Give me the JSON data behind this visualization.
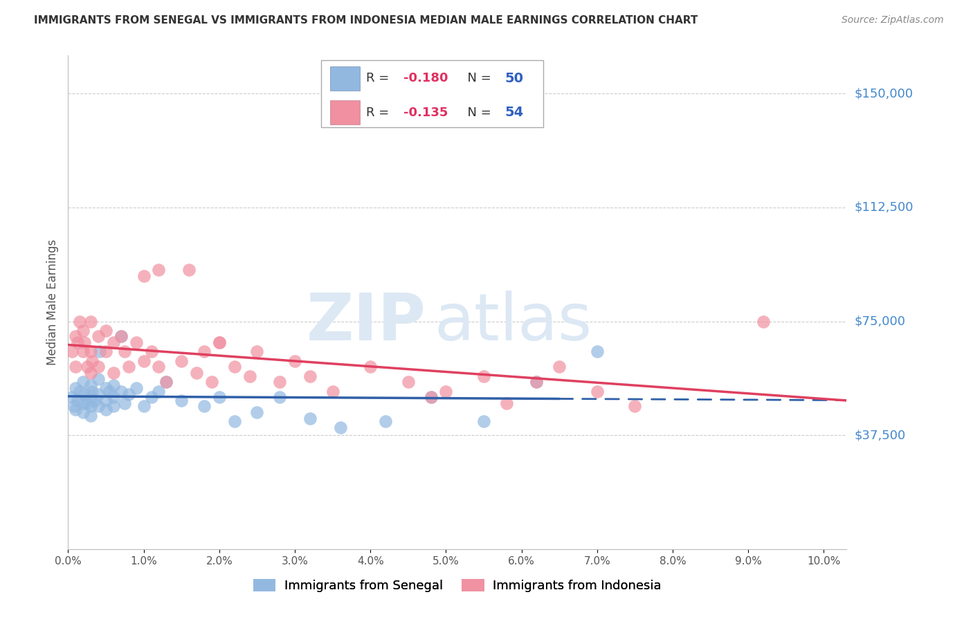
{
  "title": "IMMIGRANTS FROM SENEGAL VS IMMIGRANTS FROM INDONESIA MEDIAN MALE EARNINGS CORRELATION CHART",
  "source": "Source: ZipAtlas.com",
  "ylabel": "Median Male Earnings",
  "yticks": [
    0,
    37500,
    75000,
    112500,
    150000
  ],
  "ytick_labels": [
    "",
    "$37,500",
    "$75,000",
    "$112,500",
    "$150,000"
  ],
  "xlim": [
    0.0,
    0.103
  ],
  "ylim": [
    0,
    162500
  ],
  "senegal_color": "#92b8e0",
  "indonesia_color": "#f090a0",
  "trendline_senegal_color": "#3060a8",
  "trendline_indonesia_color": "#e04060",
  "watermark_zip": "ZIP",
  "watermark_atlas": "atlas",
  "watermark_color": "#dce8f4",
  "background_color": "#ffffff",
  "grid_color": "#cccccc",
  "ytick_color": "#4488cc",
  "title_color": "#333333",
  "legend_r1": "-0.180",
  "legend_n1": "50",
  "legend_r2": "-0.135",
  "legend_n2": "54",
  "legend_rn_color": "#e03060",
  "legend_n_color": "#3060c0",
  "senegal_x": [
    0.0005,
    0.0008,
    0.001,
    0.001,
    0.0012,
    0.0015,
    0.002,
    0.002,
    0.002,
    0.0022,
    0.0025,
    0.003,
    0.003,
    0.003,
    0.003,
    0.0032,
    0.0035,
    0.004,
    0.004,
    0.004,
    0.0042,
    0.005,
    0.005,
    0.005,
    0.0055,
    0.006,
    0.006,
    0.006,
    0.007,
    0.007,
    0.0075,
    0.008,
    0.009,
    0.01,
    0.011,
    0.012,
    0.013,
    0.015,
    0.018,
    0.02,
    0.022,
    0.025,
    0.028,
    0.032,
    0.036,
    0.042,
    0.048,
    0.055,
    0.062,
    0.07
  ],
  "senegal_y": [
    50000,
    47000,
    53000,
    46000,
    49000,
    52000,
    55000,
    48000,
    45000,
    51000,
    48000,
    54000,
    50000,
    47000,
    44000,
    52000,
    49000,
    56000,
    51000,
    47000,
    65000,
    53000,
    49000,
    46000,
    52000,
    54000,
    50000,
    47000,
    70000,
    52000,
    48000,
    51000,
    53000,
    47000,
    50000,
    52000,
    55000,
    49000,
    47000,
    50000,
    42000,
    45000,
    50000,
    43000,
    40000,
    42000,
    50000,
    42000,
    55000,
    65000
  ],
  "indonesia_x": [
    0.0005,
    0.001,
    0.001,
    0.0012,
    0.0015,
    0.002,
    0.002,
    0.0022,
    0.0025,
    0.003,
    0.003,
    0.003,
    0.0032,
    0.004,
    0.004,
    0.005,
    0.005,
    0.006,
    0.006,
    0.007,
    0.0075,
    0.008,
    0.009,
    0.01,
    0.011,
    0.012,
    0.013,
    0.015,
    0.017,
    0.018,
    0.019,
    0.02,
    0.022,
    0.025,
    0.028,
    0.03,
    0.032,
    0.035,
    0.04,
    0.045,
    0.048,
    0.05,
    0.055,
    0.058,
    0.062,
    0.065,
    0.07,
    0.075,
    0.092,
    0.01,
    0.012,
    0.016,
    0.02,
    0.024
  ],
  "indonesia_y": [
    65000,
    60000,
    70000,
    68000,
    75000,
    72000,
    65000,
    68000,
    60000,
    75000,
    65000,
    58000,
    62000,
    70000,
    60000,
    72000,
    65000,
    68000,
    58000,
    70000,
    65000,
    60000,
    68000,
    62000,
    65000,
    60000,
    55000,
    62000,
    58000,
    65000,
    55000,
    68000,
    60000,
    65000,
    55000,
    62000,
    57000,
    52000,
    60000,
    55000,
    50000,
    52000,
    57000,
    48000,
    55000,
    60000,
    52000,
    47000,
    75000,
    90000,
    92000,
    92000,
    68000,
    57000
  ]
}
